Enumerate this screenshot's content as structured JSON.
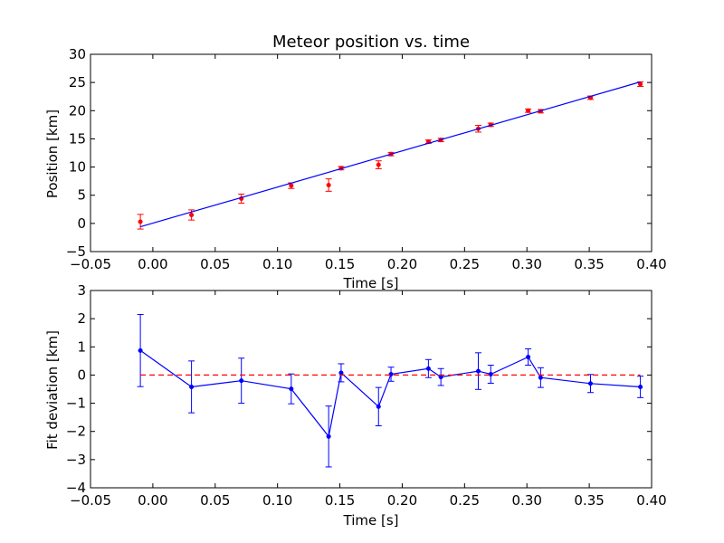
{
  "chart_data": [
    {
      "type": "scatter",
      "title": "Meteor position vs. time",
      "xlabel": "Time [s]",
      "ylabel": "Position [km]",
      "xlim": [
        -0.05,
        0.4
      ],
      "ylim": [
        -5,
        30
      ],
      "xticks": [
        -0.05,
        0.0,
        0.05,
        0.1,
        0.15,
        0.2,
        0.25,
        0.3,
        0.35,
        0.4
      ],
      "xtick_labels": [
        "−0.05",
        "0.00",
        "0.05",
        "0.10",
        "0.15",
        "0.20",
        "0.25",
        "0.30",
        "0.35",
        "0.40"
      ],
      "yticks": [
        -5,
        0,
        5,
        10,
        15,
        20,
        25,
        30
      ],
      "ytick_labels": [
        "−5",
        "0",
        "5",
        "10",
        "15",
        "20",
        "25",
        "30"
      ],
      "grid": false,
      "series": [
        {
          "kind": "errorbar-points",
          "color": "#ff0000",
          "x": [
            -0.01,
            0.031,
            0.071,
            0.111,
            0.141,
            0.151,
            0.181,
            0.191,
            0.221,
            0.231,
            0.261,
            0.271,
            0.301,
            0.311,
            0.351,
            0.391
          ],
          "y": [
            0.3,
            1.5,
            4.4,
            6.7,
            6.8,
            9.8,
            10.4,
            12.3,
            14.5,
            14.8,
            16.8,
            17.5,
            20.0,
            19.9,
            22.3,
            24.7
          ],
          "yerr": [
            1.3,
            0.9,
            0.8,
            0.5,
            1.1,
            0.3,
            0.7,
            0.3,
            0.3,
            0.3,
            0.6,
            0.3,
            0.3,
            0.3,
            0.3,
            0.4
          ]
        },
        {
          "kind": "fit-line",
          "color": "#0000ff",
          "x": [
            -0.01,
            0.391
          ],
          "y": [
            -0.6,
            25.1
          ]
        }
      ]
    },
    {
      "type": "line",
      "title": "",
      "xlabel": "Time [s]",
      "ylabel": "Fit deviation [km]",
      "xlim": [
        -0.05,
        0.4
      ],
      "ylim": [
        -4,
        3
      ],
      "xticks": [
        -0.05,
        0.0,
        0.05,
        0.1,
        0.15,
        0.2,
        0.25,
        0.3,
        0.35,
        0.4
      ],
      "xtick_labels": [
        "−0.05",
        "0.00",
        "0.05",
        "0.10",
        "0.15",
        "0.20",
        "0.25",
        "0.30",
        "0.35",
        "0.40"
      ],
      "yticks": [
        -4,
        -3,
        -2,
        -1,
        0,
        1,
        2,
        3
      ],
      "ytick_labels": [
        "−4",
        "−3",
        "−2",
        "−1",
        "0",
        "1",
        "2",
        "3"
      ],
      "grid": false,
      "series": [
        {
          "kind": "errorbar-line",
          "color": "#0000ff",
          "x": [
            -0.01,
            0.031,
            0.071,
            0.111,
            0.141,
            0.151,
            0.181,
            0.191,
            0.221,
            0.231,
            0.261,
            0.271,
            0.301,
            0.311,
            0.351,
            0.391
          ],
          "y": [
            0.87,
            -0.42,
            -0.2,
            -0.49,
            -2.18,
            0.08,
            -1.12,
            0.03,
            0.23,
            -0.07,
            0.14,
            0.03,
            0.64,
            -0.09,
            -0.3,
            -0.42
          ],
          "yerr": [
            1.28,
            0.92,
            0.8,
            0.53,
            1.08,
            0.32,
            0.68,
            0.25,
            0.32,
            0.3,
            0.65,
            0.32,
            0.29,
            0.35,
            0.32,
            0.38
          ]
        },
        {
          "kind": "reference-line",
          "color": "#ff0000",
          "dashed": true,
          "x": [
            -0.01,
            0.391
          ],
          "y": [
            0,
            0
          ]
        }
      ]
    }
  ]
}
